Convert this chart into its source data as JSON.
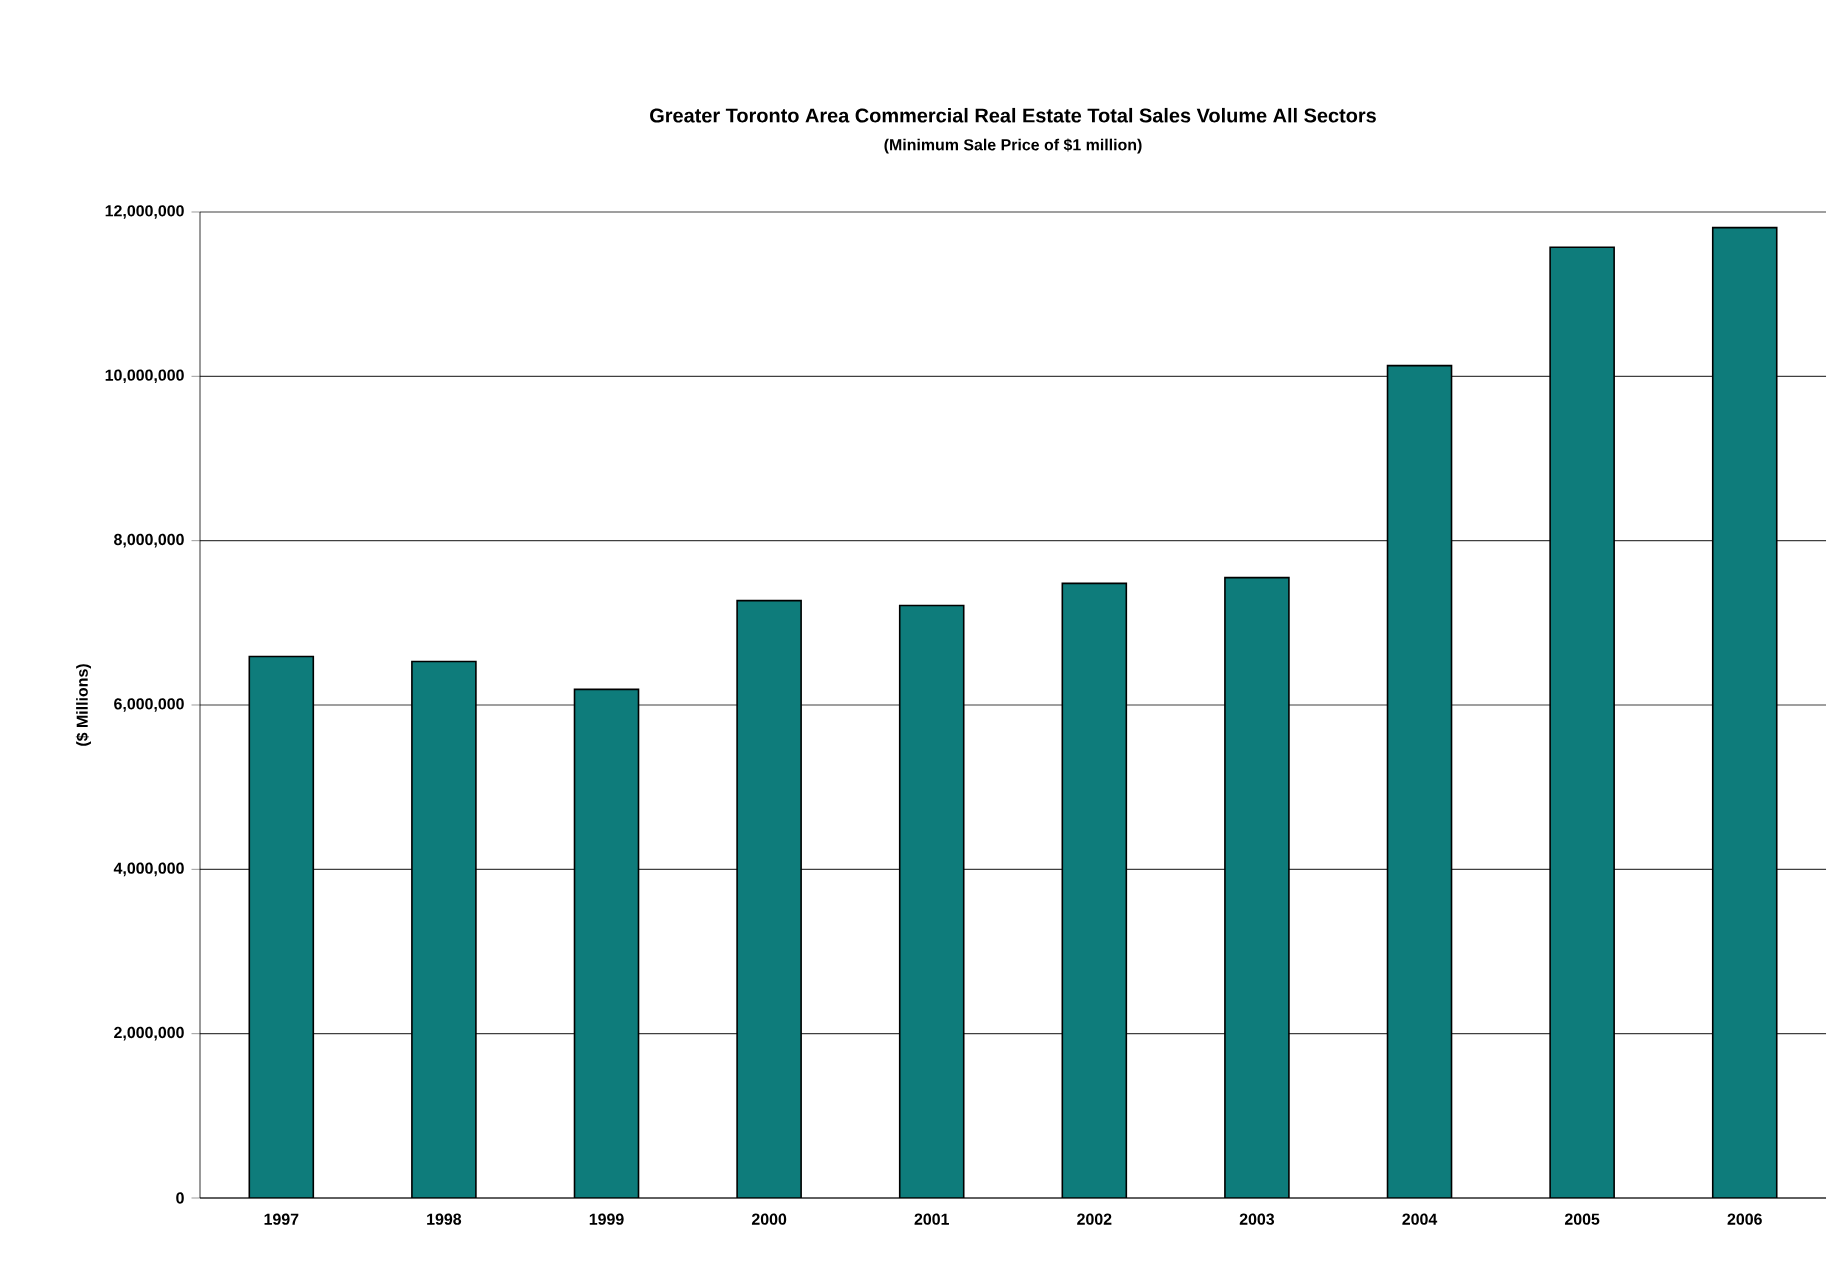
{
  "chart_data": {
    "type": "bar",
    "title": "Greater Toronto Area Commercial Real Estate Total Sales Volume All Sectors",
    "subtitle": "(Minimum Sale Price of $1 million)",
    "ylabel": "($ Millions)",
    "categories": [
      "1997",
      "1998",
      "1999",
      "2000",
      "2001",
      "2002",
      "2003",
      "2004",
      "2005",
      "2006"
    ],
    "values": [
      6590000,
      6530000,
      6190000,
      7270000,
      7210000,
      7480000,
      7550000,
      10130000,
      11570000,
      11810000
    ],
    "color": "#0e7c7b",
    "ylim": [
      0,
      12000000
    ],
    "yticks": [
      {
        "value": 0,
        "label": "0"
      },
      {
        "value": 2000000,
        "label": "2,000,000"
      },
      {
        "value": 4000000,
        "label": "4,000,000"
      },
      {
        "value": 6000000,
        "label": "6,000,000"
      },
      {
        "value": 8000000,
        "label": "8,000,000"
      },
      {
        "value": 10000000,
        "label": "10,000,000"
      },
      {
        "value": 12000000,
        "label": "12,000,000"
      }
    ],
    "grid": "y"
  }
}
